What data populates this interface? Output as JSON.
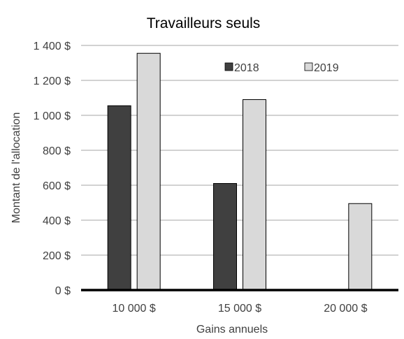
{
  "chart_data": {
    "type": "bar",
    "title": "Travailleurs seuls",
    "xlabel": "Gains annuels",
    "ylabel": "Montant de l'allocation",
    "categories": [
      "10 000 $",
      "15 000 $",
      "20 000 $"
    ],
    "series": [
      {
        "name": "2018",
        "values": [
          1055,
          610,
          0
        ],
        "color": "#404040"
      },
      {
        "name": "2019",
        "values": [
          1355,
          1090,
          495
        ],
        "color": "#d9d9d9"
      }
    ],
    "ylim": [
      0,
      1400
    ],
    "yticks": [
      0,
      200,
      400,
      600,
      800,
      1000,
      1200,
      1400
    ],
    "ytick_labels": [
      "0 $",
      "200 $",
      "400 $",
      "600 $",
      "800 $",
      "1 000 $",
      "1 200 $",
      "1 400 $"
    ],
    "grid": true,
    "legend_position": "top-right"
  }
}
